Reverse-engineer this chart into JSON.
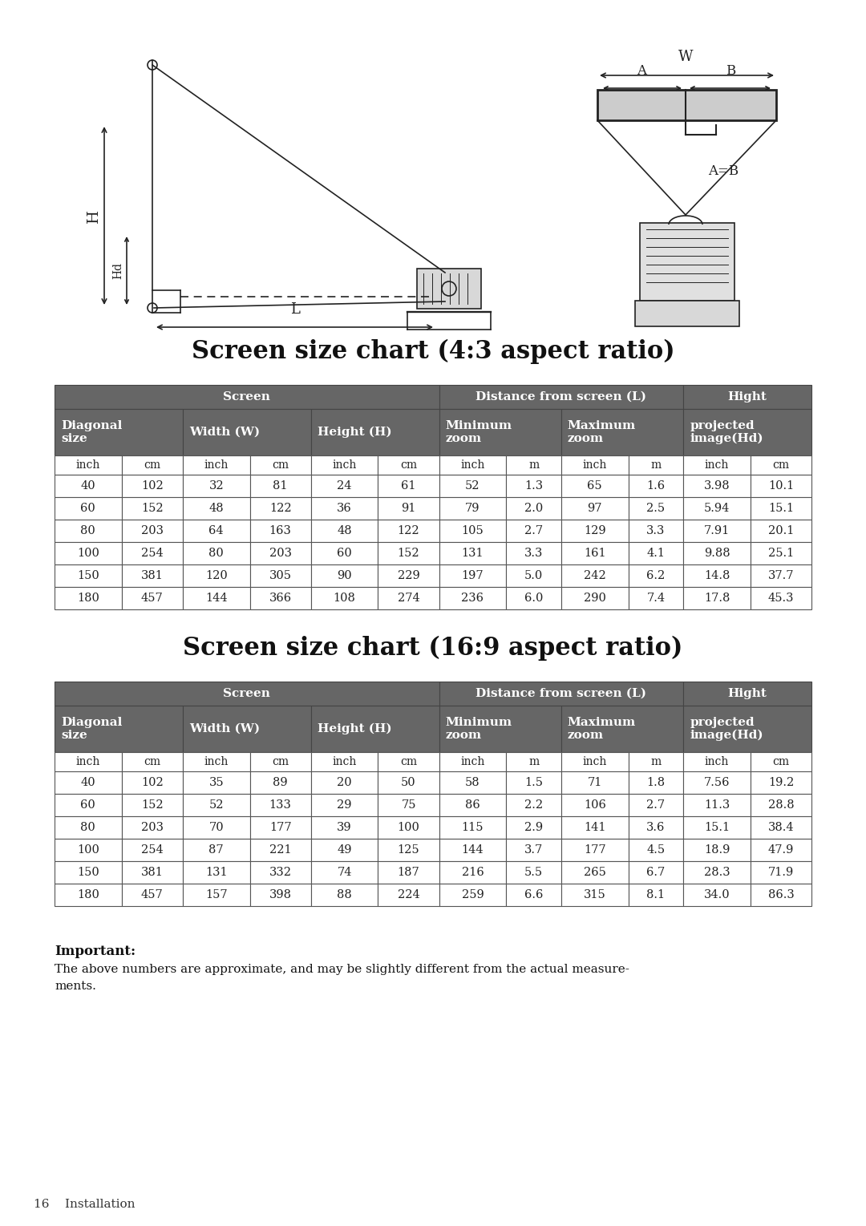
{
  "title1": "Screen size chart (4:3 aspect ratio)",
  "title2": "Screen size chart (16:9 aspect ratio)",
  "header_bg": "#666666",
  "header_fg": "#ffffff",
  "col_units": [
    "inch",
    "cm",
    "inch",
    "cm",
    "inch",
    "cm",
    "inch",
    "m",
    "inch",
    "m",
    "inch",
    "cm"
  ],
  "table_43": [
    [
      40,
      102,
      32,
      81,
      24,
      61,
      52,
      1.3,
      65,
      1.6,
      3.98,
      10.1
    ],
    [
      60,
      152,
      48,
      122,
      36,
      91,
      79,
      2.0,
      97,
      2.5,
      5.94,
      15.1
    ],
    [
      80,
      203,
      64,
      163,
      48,
      122,
      105,
      2.7,
      129,
      3.3,
      7.91,
      20.1
    ],
    [
      100,
      254,
      80,
      203,
      60,
      152,
      131,
      3.3,
      161,
      4.1,
      9.88,
      25.1
    ],
    [
      150,
      381,
      120,
      305,
      90,
      229,
      197,
      5.0,
      242,
      6.2,
      14.8,
      37.7
    ],
    [
      180,
      457,
      144,
      366,
      108,
      274,
      236,
      6.0,
      290,
      7.4,
      17.8,
      45.3
    ]
  ],
  "table_169": [
    [
      40,
      102,
      35,
      89,
      20,
      50,
      58,
      1.5,
      71,
      1.8,
      7.56,
      19.2
    ],
    [
      60,
      152,
      52,
      133,
      29,
      75,
      86,
      2.2,
      106,
      2.7,
      11.3,
      28.8
    ],
    [
      80,
      203,
      70,
      177,
      39,
      100,
      115,
      2.9,
      141,
      3.6,
      15.1,
      38.4
    ],
    [
      100,
      254,
      87,
      221,
      49,
      125,
      144,
      3.7,
      177,
      4.5,
      18.9,
      47.9
    ],
    [
      150,
      381,
      131,
      332,
      74,
      187,
      216,
      5.5,
      265,
      6.7,
      28.3,
      71.9
    ],
    [
      180,
      457,
      157,
      398,
      88,
      224,
      259,
      6.6,
      315,
      8.1,
      34.0,
      86.3
    ]
  ],
  "important_label": "Important:",
  "important_text": "The above numbers are approximate, and may be slightly different from the actual measure-\nments.",
  "footer_text": "16    Installation",
  "bg_color": "#ffffff",
  "lw": 1.2,
  "dc": "#222222"
}
